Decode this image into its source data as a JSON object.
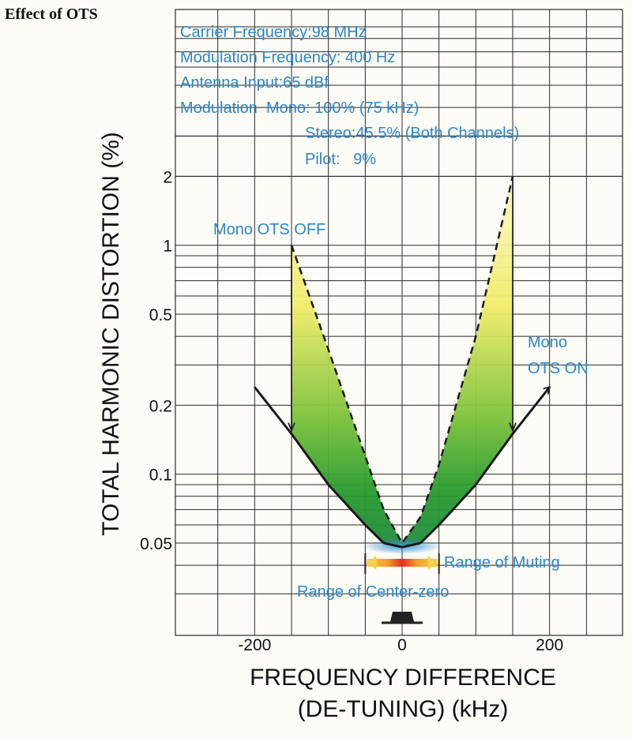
{
  "figure_title": "Effect of OTS",
  "chart_data": {
    "type": "line",
    "xlabel": [
      "FREQUENCY DIFFERENCE",
      "(DE-TUNING) (kHz)"
    ],
    "ylabel": "TOTAL HARMONIC DISTORTION (%)",
    "y_scale": "log",
    "xlim": [
      -300,
      300
    ],
    "x_ticks": [
      -200,
      0,
      200
    ],
    "x_tick_labels": [
      "-200",
      "0",
      "200"
    ],
    "y_ticks": [
      0.05,
      0.1,
      0.2,
      0.5,
      1,
      2
    ],
    "y_tick_labels": [
      "0.05",
      "0.1",
      "0.2",
      "0.5",
      "1",
      "2"
    ],
    "grid": true,
    "conditions": [
      "Carrier Frequency:98 MHz",
      "Modulation Frequency: 400 Hz",
      "Antenna Input:65 dBf",
      "Modulation  Mono: 100% (75 kHz)",
      "Stereo:45.5% (Both Channels)",
      "Pilot:   9%"
    ],
    "series": [
      {
        "name": "Mono OTS OFF",
        "style": "dashed",
        "color": "#1a1a1a",
        "x": [
          -150,
          -100,
          -50,
          -25,
          0,
          25,
          50,
          100,
          150
        ],
        "y": [
          1.0,
          0.35,
          0.12,
          0.07,
          0.05,
          0.065,
          0.11,
          0.4,
          2.0
        ]
      },
      {
        "name": "Mono OTS ON",
        "style": "solid",
        "color": "#1a1a1a",
        "x": [
          -200,
          -150,
          -100,
          -50,
          -25,
          0,
          25,
          50,
          100,
          150,
          200
        ],
        "y": [
          0.24,
          0.15,
          0.09,
          0.06,
          0.05,
          0.048,
          0.05,
          0.06,
          0.09,
          0.15,
          0.24
        ]
      }
    ],
    "annotations": [
      {
        "text": "Range of Muting",
        "x": [
          -50,
          50
        ]
      },
      {
        "text": "Range of Center-zero",
        "x": [
          -25,
          25
        ]
      }
    ],
    "colors": {
      "text_blue": "#2d86c4",
      "fill_yellow": "#f4ee7a",
      "fill_green": "#2f9a2a",
      "muting_red": "#e23a22",
      "muting_orange": "#f6a826"
    }
  }
}
